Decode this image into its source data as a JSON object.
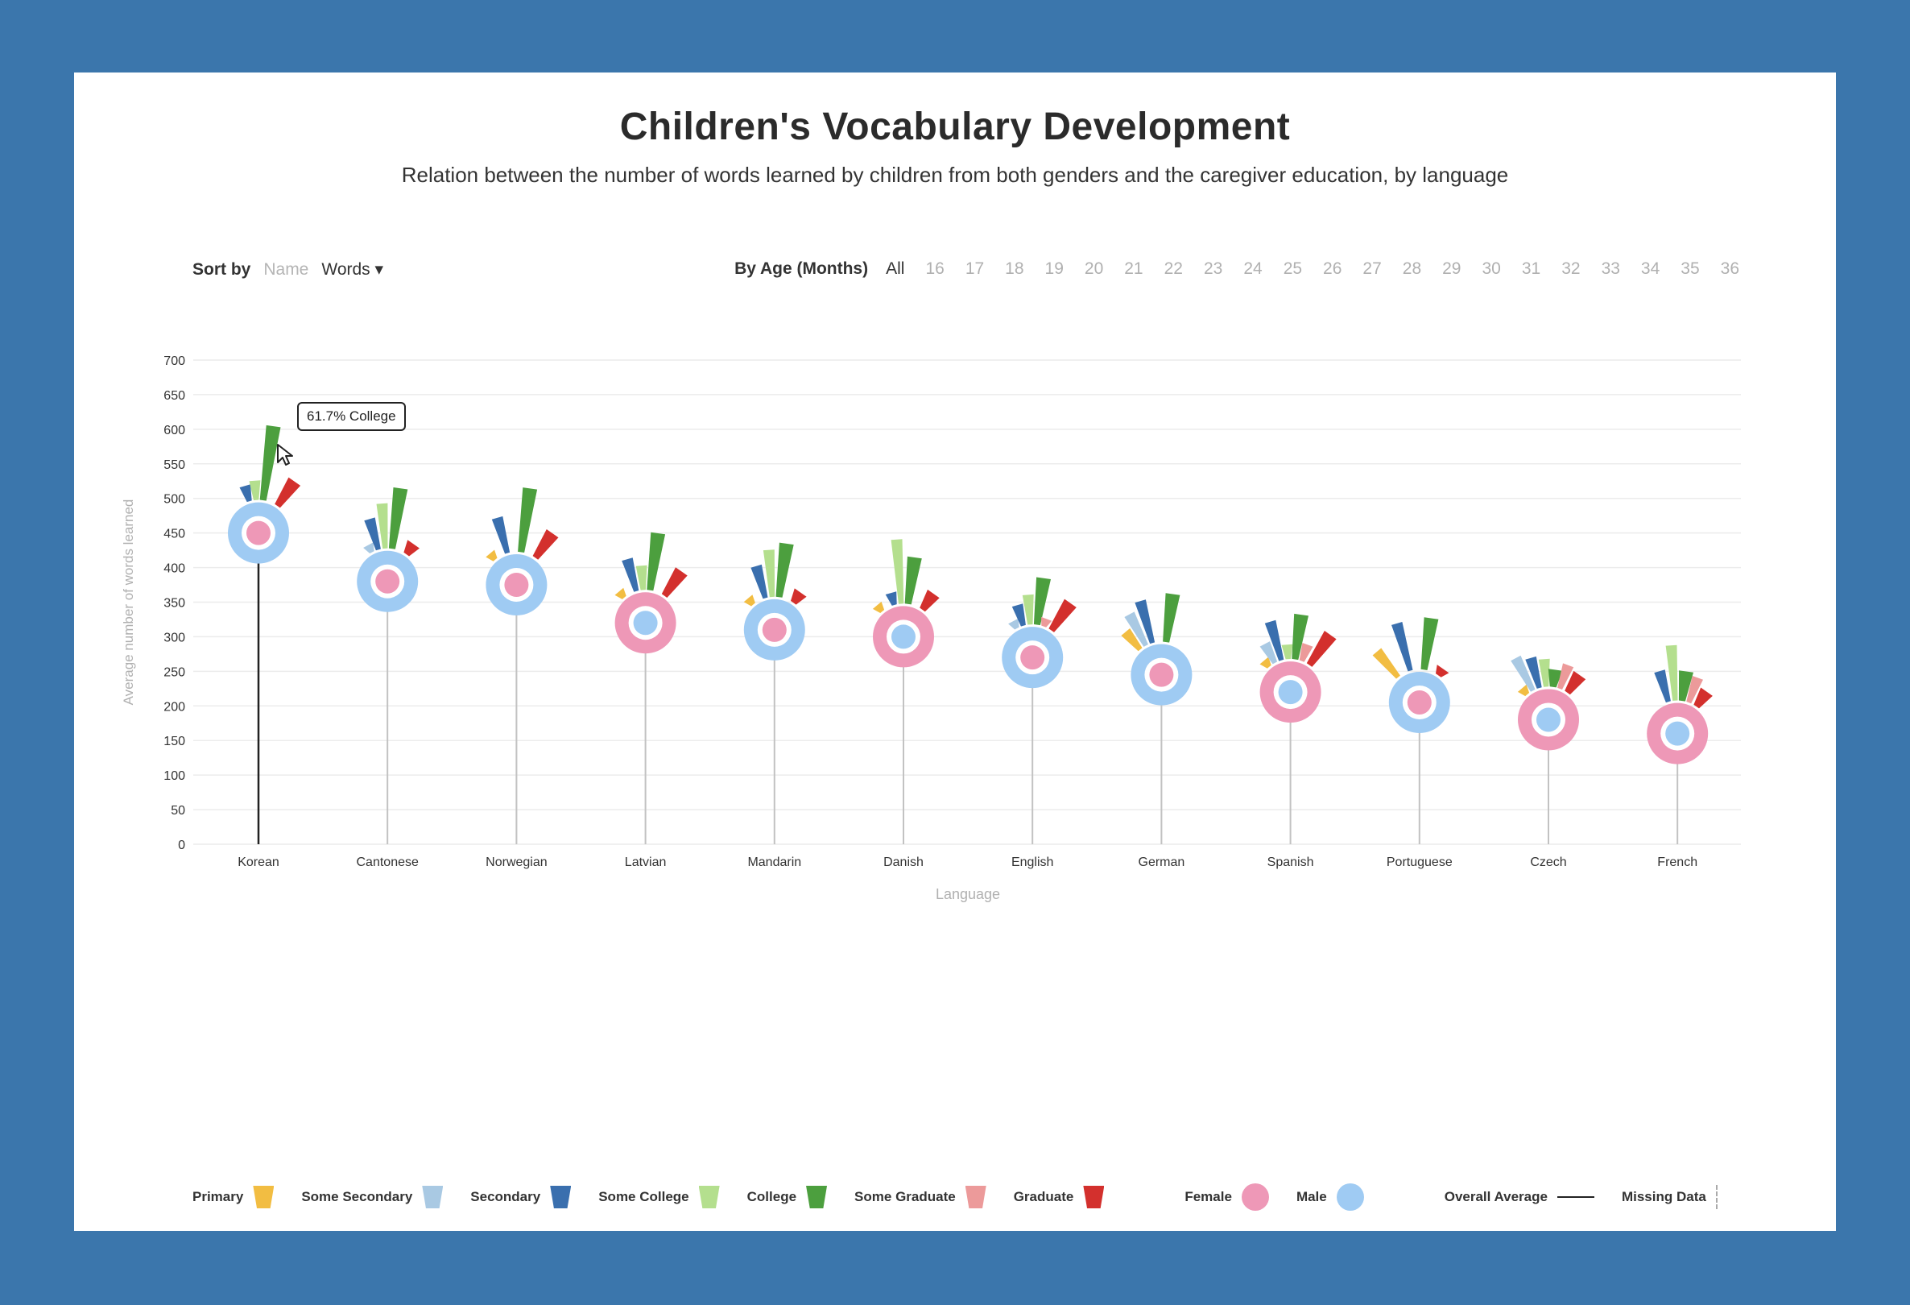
{
  "title": "Children's Vocabulary Development",
  "subtitle": "Relation between the number of words learned by children from both genders and the caregiver education, by language",
  "sort": {
    "label": "Sort by",
    "options": [
      "Name",
      "Words ▾"
    ],
    "active": 1
  },
  "age_filter": {
    "label": "By Age (Months)",
    "options": [
      "All",
      "16",
      "17",
      "18",
      "19",
      "20",
      "21",
      "22",
      "23",
      "24",
      "25",
      "26",
      "27",
      "28",
      "29",
      "30",
      "31",
      "32",
      "33",
      "34",
      "35",
      "36"
    ],
    "active": "All"
  },
  "tooltip": "61.7% College",
  "colors": {
    "Primary": "#f2bd42",
    "Some Secondary": "#a9c9e3",
    "Secondary": "#3a6fae",
    "Some College": "#b4df8e",
    "College": "#4c9f3e",
    "Some Graduate": "#ec9a9a",
    "Graduate": "#d3302d",
    "Female": "#ee98b7",
    "Male": "#9fcbf3",
    "Overall Average": "#222222",
    "Missing Data": "#aaaaaa",
    "stem": "#c2c2c2"
  },
  "legend": {
    "education": [
      "Primary",
      "Some Secondary",
      "Secondary",
      "Some College",
      "College",
      "Some Graduate",
      "Graduate"
    ],
    "gender": [
      "Female",
      "Male"
    ],
    "overall_average": "Overall Average",
    "missing_data": "Missing Data"
  },
  "chart_data": {
    "type": "scatter",
    "title": "Children's Vocabulary Development",
    "xlabel": "Language",
    "ylabel": "Average number of words learned",
    "ylim": [
      0,
      700
    ],
    "yticks": [
      0,
      50,
      100,
      150,
      200,
      250,
      300,
      350,
      400,
      450,
      500,
      550,
      600,
      650,
      700
    ],
    "grid": true,
    "categories": [
      "Korean",
      "Cantonese",
      "Norwegian",
      "Latvian",
      "Mandarin",
      "Danish",
      "English",
      "German",
      "Spanish",
      "Portuguese",
      "Czech",
      "French"
    ],
    "education_levels": [
      "Primary",
      "Some Secondary",
      "Secondary",
      "Some College",
      "College",
      "Some Graduate",
      "Graduate"
    ],
    "items": [
      {
        "language": "Korean",
        "overall": 450,
        "female": 450,
        "male": 450,
        "outer": "Male",
        "highlight": true,
        "education_words": [
          null,
          null,
          515,
          520,
          600,
          null,
          535
        ]
      },
      {
        "language": "Cantonese",
        "overall": 380,
        "female": 380,
        "male": 380,
        "outer": "Male",
        "education_words": [
          null,
          427,
          468,
          487,
          510,
          null,
          440
        ]
      },
      {
        "language": "Norwegian",
        "overall": 375,
        "female": 375,
        "male": 375,
        "outer": "Male",
        "education_words": [
          415,
          null,
          470,
          null,
          510,
          null,
          460
        ]
      },
      {
        "language": "Latvian",
        "overall": 320,
        "female": 320,
        "male": 320,
        "outer": "Female",
        "education_words": [
          360,
          null,
          410,
          397,
          445,
          null,
          405
        ]
      },
      {
        "language": "Mandarin",
        "overall": 310,
        "female": 310,
        "male": 310,
        "outer": "Male",
        "education_words": [
          352,
          null,
          400,
          420,
          430,
          null,
          370
        ]
      },
      {
        "language": "Danish",
        "overall": 300,
        "female": 300,
        "male": 300,
        "outer": "Female",
        "education_words": [
          350,
          null,
          360,
          435,
          410,
          null,
          370
        ]
      },
      {
        "language": "English",
        "overall": 270,
        "female": 270,
        "male": 270,
        "outer": "Male",
        "education_words": [
          null,
          318,
          343,
          355,
          380,
          322,
          360
        ]
      },
      {
        "language": "German",
        "overall": 245,
        "female": 245,
        "male": 245,
        "outer": "Male",
        "education_words": [
          320,
          338,
          350,
          null,
          357,
          null,
          null
        ]
      },
      {
        "language": "Spanish",
        "overall": 220,
        "female": 220,
        "male": 220,
        "outer": "Female",
        "education_words": [
          272,
          293,
          320,
          283,
          327,
          287,
          315
        ]
      },
      {
        "language": "Portuguese",
        "overall": 205,
        "female": 205,
        "male": 205,
        "outer": "Male",
        "education_words": [
          295,
          null,
          318,
          null,
          322,
          null,
          252
        ]
      },
      {
        "language": "Czech",
        "overall": 180,
        "female": 180,
        "male": 180,
        "outer": "Female",
        "education_words": [
          230,
          275,
          267,
          262,
          247,
          258,
          253
        ]
      },
      {
        "language": "French",
        "overall": 160,
        "female": 160,
        "male": 160,
        "outer": "Female",
        "education_words": [
          null,
          null,
          248,
          282,
          245,
          240,
          228
        ]
      }
    ]
  }
}
